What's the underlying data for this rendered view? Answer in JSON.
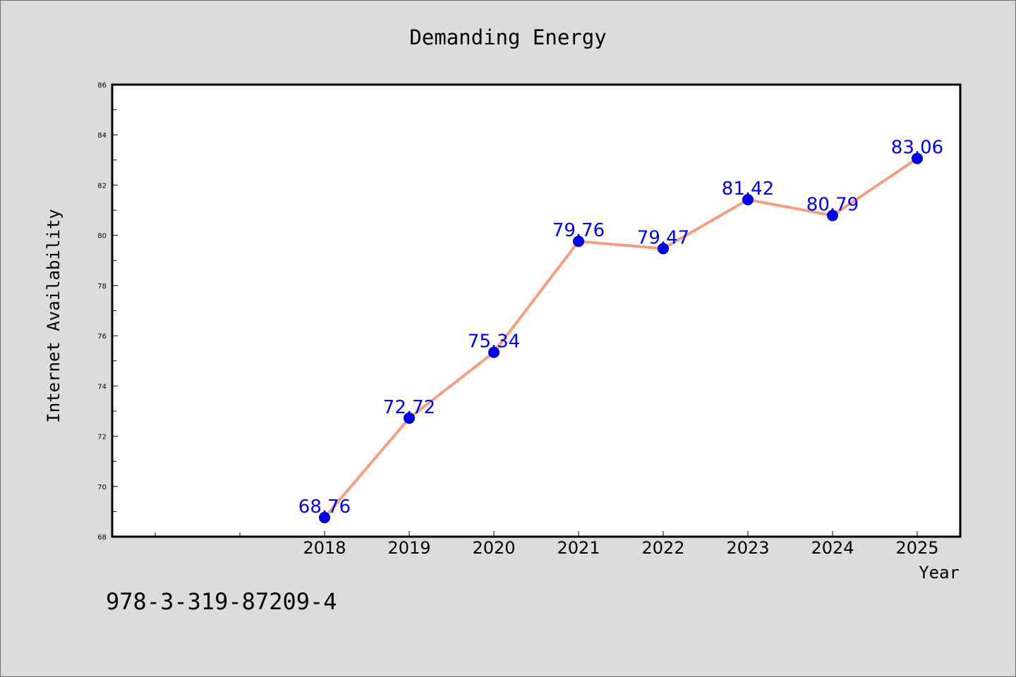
{
  "chart_data": {
    "type": "line",
    "title": "Demanding Energy",
    "xlabel": "Year",
    "ylabel": "Internet Availability",
    "x": [
      "2018",
      "2019",
      "2020",
      "2021",
      "2022",
      "2023",
      "2024",
      "2025"
    ],
    "series": [
      {
        "values": [
          68.76,
          72.72,
          75.34,
          79.76,
          79.47,
          81.42,
          80.79,
          83.06
        ],
        "line_color": "#f4a07e",
        "marker_color": "#0000ff"
      }
    ],
    "data_labels": [
      "68.76",
      "72.72",
      "75.34",
      "79.76",
      "79.47",
      "81.42",
      "80.79",
      "83.06"
    ],
    "data_label_color": "#0000ff",
    "ylim": [
      68,
      86
    ],
    "yticks": [
      "68",
      "70",
      "72",
      "74",
      "76",
      "78",
      "80",
      "82",
      "84",
      "86"
    ],
    "grid": false,
    "legend": "none"
  },
  "footer": {
    "isbn": "978-3-319-87209-4"
  }
}
